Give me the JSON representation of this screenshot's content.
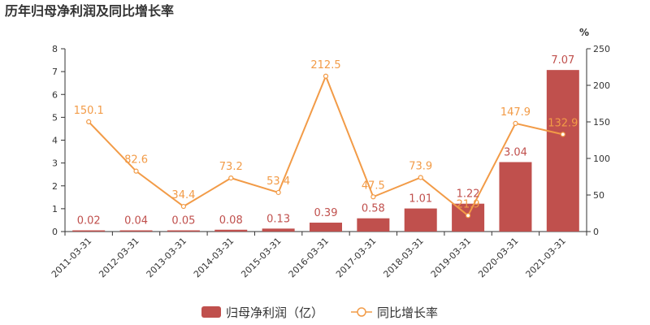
{
  "chart_data": {
    "type": "bar",
    "title": "历年归母净利润及同比增长率",
    "categories": [
      "2011-03-31",
      "2012-03-31",
      "2013-03-31",
      "2014-03-31",
      "2015-03-31",
      "2016-03-31",
      "2017-03-31",
      "2018-03-31",
      "2019-03-31",
      "2020-03-31",
      "2021-03-31"
    ],
    "series": [
      {
        "name": "归母净利润（亿）",
        "type": "bar",
        "axis": "left",
        "color": "#c0504d",
        "values": [
          0.02,
          0.04,
          0.05,
          0.08,
          0.13,
          0.39,
          0.58,
          1.01,
          1.22,
          3.04,
          7.07
        ],
        "labels": [
          "0.02",
          "0.04",
          "0.05",
          "0.08",
          "0.13",
          "0.39",
          "0.58",
          "1.01",
          "1.22",
          "3.04",
          "7.07"
        ]
      },
      {
        "name": "同比增长率",
        "type": "line",
        "axis": "right",
        "color": "#f29b47",
        "values": [
          150.1,
          82.6,
          34.4,
          73.2,
          53.4,
          212.5,
          47.5,
          73.9,
          21.9,
          147.9,
          132.9
        ],
        "labels": [
          "150.1",
          "82.6",
          "34.4",
          "73.2",
          "53.4",
          "212.5",
          "47.5",
          "73.9",
          "21.9",
          "147.9",
          "132.9"
        ]
      }
    ],
    "y_left": {
      "min": 0,
      "max": 8,
      "ticks": [
        "0",
        "1",
        "2",
        "3",
        "4",
        "5",
        "6",
        "7",
        "8"
      ]
    },
    "y_right": {
      "min": 0,
      "max": 250,
      "unit": "%",
      "ticks": [
        "0",
        "50",
        "100",
        "150",
        "200",
        "250"
      ]
    },
    "legend": {
      "position": "bottom"
    }
  }
}
